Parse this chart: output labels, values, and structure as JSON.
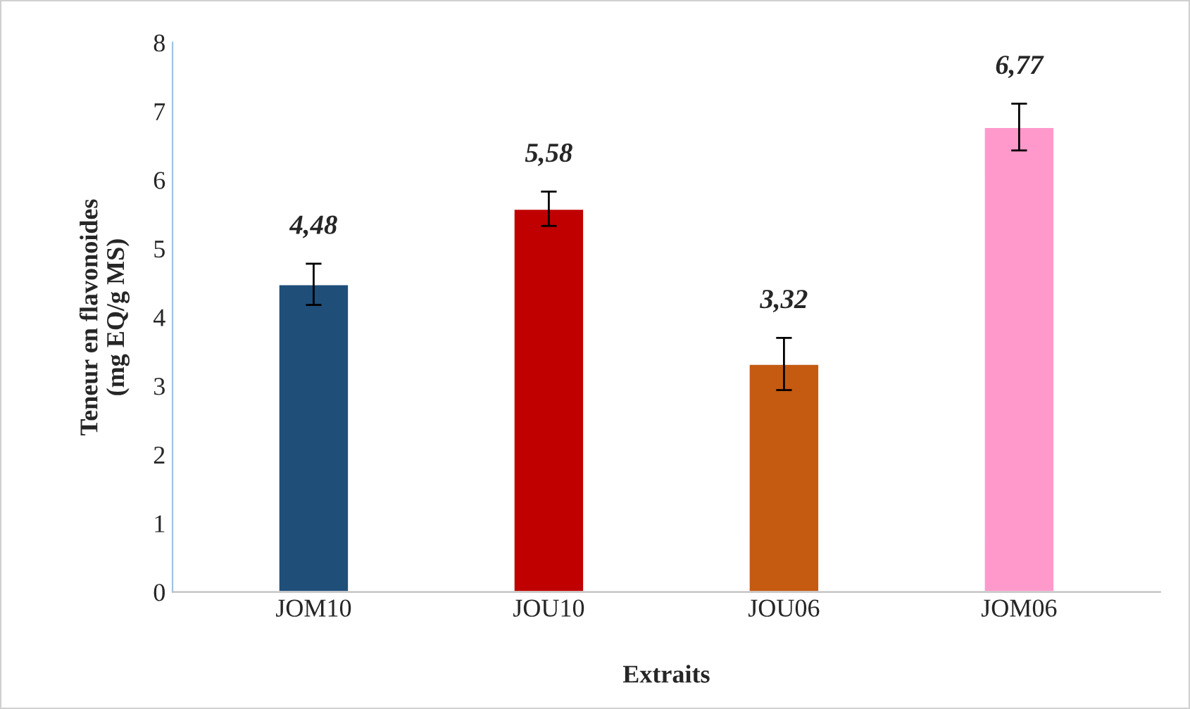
{
  "chart_data": {
    "type": "bar",
    "xlabel": "Extraits",
    "ylabel": "Teneur en flavonoides\n(mg EQ/g MS)",
    "categories": [
      "JOM10",
      "JOU10",
      "JOU06",
      "JOM06"
    ],
    "values": [
      4.48,
      5.58,
      3.32,
      6.77
    ],
    "colors": [
      "#1f4e79",
      "#c00000",
      "#c55a11",
      "#ff99cc"
    ],
    "errors": [
      0.3,
      0.25,
      0.38,
      0.34
    ],
    "value_labels": [
      "4,48",
      "5,58",
      "3,32",
      "6,77"
    ],
    "ylim": [
      0,
      8
    ],
    "yticks": [
      0,
      1,
      2,
      3,
      4,
      5,
      6,
      7,
      8
    ],
    "grid": false,
    "legend": false
  }
}
